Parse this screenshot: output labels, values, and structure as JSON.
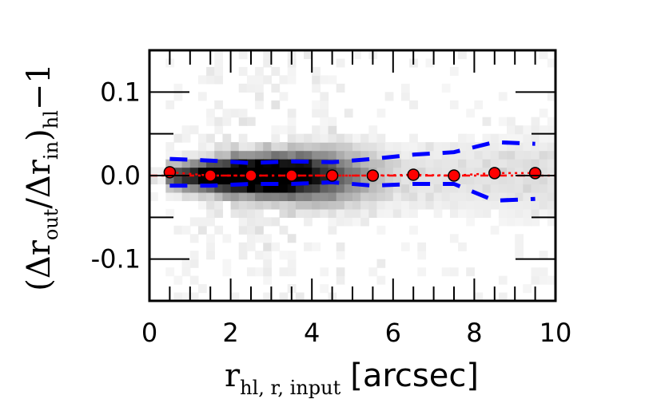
{
  "chart_data": {
    "type": "scatter",
    "title": "",
    "xlabel": {
      "main": "r",
      "subscript": "hl, r, input",
      "unit": "[arcsec]"
    },
    "ylabel": {
      "text": "(Δr",
      "sub1": "out",
      "mid": "/Δr",
      "sub2": "in",
      "close": ")",
      "sub3": "hl",
      "tail": "−1"
    },
    "xlim": [
      0,
      10
    ],
    "ylim": [
      -0.15,
      0.15
    ],
    "xticks": [
      "0",
      "2",
      "4",
      "6",
      "8",
      "10"
    ],
    "xtick_values": [
      0,
      2,
      4,
      6,
      8,
      10
    ],
    "yticks": [
      "0.1",
      "0.0",
      "-0.1"
    ],
    "ytick_values": [
      0.1,
      0.0,
      -0.1
    ],
    "grid": false,
    "legend": "none",
    "series": [
      {
        "kind": "median-points",
        "color": "#ff0000",
        "x": [
          0.5,
          1.5,
          2.5,
          3.5,
          4.5,
          5.5,
          6.5,
          7.5,
          8.5,
          9.5
        ],
        "y": [
          0.004,
          0.0,
          0.0,
          0.0,
          0.0,
          0.0,
          0.001,
          0.0,
          0.003,
          0.003
        ]
      },
      {
        "kind": "upper-percentile-dashed",
        "color": "#0000ff",
        "x": [
          0.5,
          1.5,
          2.5,
          3.5,
          4.5,
          5.5,
          6.5,
          7.5,
          8.5,
          9.5
        ],
        "y": [
          0.02,
          0.018,
          0.015,
          0.017,
          0.016,
          0.02,
          0.025,
          0.028,
          0.04,
          0.038
        ]
      },
      {
        "kind": "lower-percentile-dashed",
        "color": "#0000ff",
        "x": [
          0.5,
          1.5,
          2.5,
          3.5,
          4.5,
          5.5,
          6.5,
          7.5,
          8.5,
          9.5
        ],
        "y": [
          -0.012,
          -0.012,
          -0.01,
          -0.01,
          -0.008,
          -0.012,
          -0.01,
          -0.01,
          -0.03,
          -0.028
        ]
      },
      {
        "kind": "reference-line-dashdot",
        "color": "#ff0000",
        "y": 0.0
      }
    ],
    "heatmap": {
      "colormap": "greys",
      "x_bins": 50,
      "y_bins": 30,
      "description_of_density": "dense core between x≈1 and x≈5 near y≈0"
    }
  }
}
